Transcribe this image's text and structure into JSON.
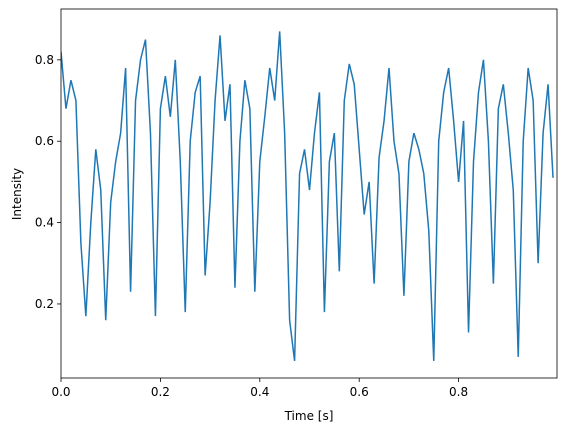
{
  "chart_data": {
    "type": "line",
    "xlabel": "Time [s]",
    "ylabel": "Intensity",
    "x": [
      0,
      0.01,
      0.02,
      0.03,
      0.04,
      0.05,
      0.06,
      0.07,
      0.08,
      0.09,
      0.1,
      0.11,
      0.12,
      0.13,
      0.14,
      0.15,
      0.16,
      0.17,
      0.18,
      0.19,
      0.2,
      0.21,
      0.22,
      0.23,
      0.24,
      0.25,
      0.26,
      0.27,
      0.28,
      0.29,
      0.3,
      0.31,
      0.32,
      0.33,
      0.34,
      0.35,
      0.36,
      0.37,
      0.38,
      0.39,
      0.4,
      0.41,
      0.42,
      0.43,
      0.44,
      0.45,
      0.46,
      0.47,
      0.48,
      0.49,
      0.5,
      0.51,
      0.52,
      0.53,
      0.54,
      0.55,
      0.56,
      0.57,
      0.58,
      0.59,
      0.6,
      0.61,
      0.62,
      0.63,
      0.64,
      0.65,
      0.66,
      0.67,
      0.68,
      0.69,
      0.7,
      0.71,
      0.72,
      0.73,
      0.74,
      0.75,
      0.76,
      0.77,
      0.78,
      0.79,
      0.8,
      0.81,
      0.82,
      0.83,
      0.84,
      0.85,
      0.86,
      0.87,
      0.88,
      0.89,
      0.9,
      0.91,
      0.92,
      0.93,
      0.94,
      0.95,
      0.96,
      0.97,
      0.98,
      0.99
    ],
    "series": [
      {
        "color": "#1f77b4",
        "values": [
          0.82,
          0.68,
          0.75,
          0.7,
          0.35,
          0.17,
          0.4,
          0.58,
          0.48,
          0.16,
          0.45,
          0.55,
          0.62,
          0.78,
          0.23,
          0.7,
          0.8,
          0.85,
          0.62,
          0.17,
          0.68,
          0.76,
          0.66,
          0.8,
          0.55,
          0.18,
          0.6,
          0.72,
          0.76,
          0.27,
          0.45,
          0.7,
          0.86,
          0.65,
          0.74,
          0.24,
          0.6,
          0.75,
          0.68,
          0.23,
          0.55,
          0.66,
          0.78,
          0.7,
          0.87,
          0.62,
          0.16,
          0.06,
          0.52,
          0.58,
          0.48,
          0.62,
          0.72,
          0.18,
          0.55,
          0.62,
          0.28,
          0.7,
          0.79,
          0.74,
          0.58,
          0.42,
          0.5,
          0.25,
          0.56,
          0.65,
          0.78,
          0.6,
          0.52,
          0.22,
          0.55,
          0.62,
          0.58,
          0.52,
          0.38,
          0.06,
          0.6,
          0.72,
          0.78,
          0.65,
          0.5,
          0.65,
          0.13,
          0.55,
          0.72,
          0.8,
          0.6,
          0.25,
          0.68,
          0.74,
          0.62,
          0.48,
          0.07,
          0.6,
          0.78,
          0.7,
          0.3,
          0.62,
          0.74,
          0.51
        ]
      }
    ],
    "xlim": [
      0,
      0.998
    ],
    "ylim": [
      0.018,
      0.925
    ],
    "xticks": [
      {
        "value": 0,
        "label": "0.0"
      },
      0.2,
      0.4,
      0.6,
      0.8
    ],
    "yticks": [
      0.2,
      0.4,
      0.6,
      0.8
    ]
  }
}
